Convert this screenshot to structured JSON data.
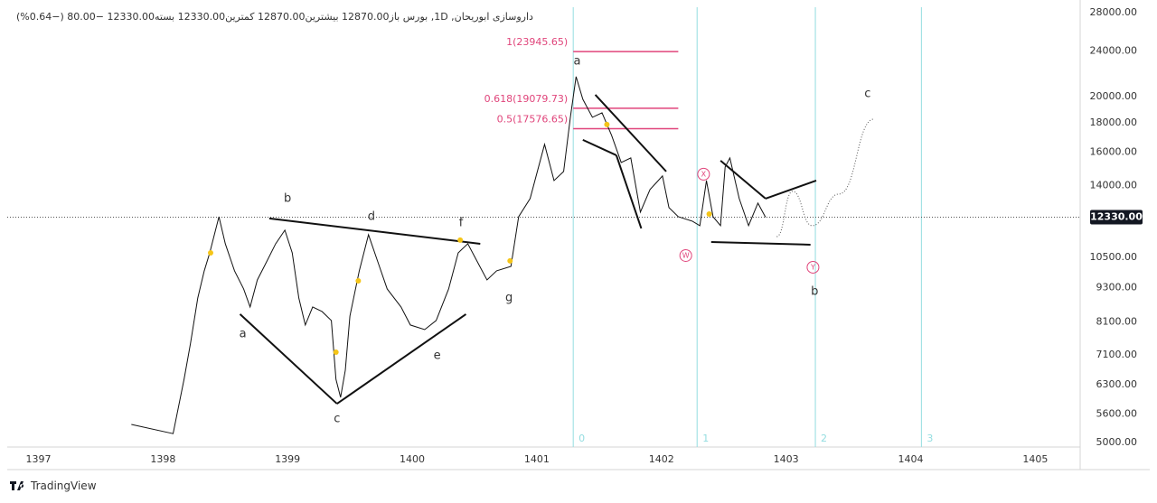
{
  "chart_data": {
    "type": "line",
    "header": "داروسازی ابوریحان, 1D, بورس  باز12870.00  بیشترین12870.00  کمترین12330.00  بسته12330.00  −80.00 (−0.64%)",
    "brand": "TradingView",
    "log_scale": true,
    "grid": false,
    "color": "#111111",
    "x": [
      1397.746,
      1398.081,
      1398.169,
      1398.221,
      1398.279,
      1398.331,
      1398.375,
      1398.449,
      1398.5,
      1398.574,
      1398.647,
      1398.699,
      1398.757,
      1398.831,
      1398.904,
      1398.978,
      1399.037,
      1399.09,
      1399.142,
      1399.201,
      1399.276,
      1399.351,
      1399.388,
      1399.425,
      1399.463,
      1399.5,
      1399.575,
      1399.649,
      1399.724,
      1399.799,
      1399.91,
      1399.985,
      1400.1,
      1400.192,
      1400.292,
      1400.369,
      1400.446,
      1400.523,
      1400.6,
      1400.677,
      1400.792,
      1400.854,
      1400.946,
      1401.062,
      1401.138,
      1401.215,
      1401.269,
      1401.315,
      1401.369,
      1401.446,
      1401.523,
      1401.6,
      1401.677,
      1401.754,
      1401.831,
      1401.908,
      1402.008,
      1402.06,
      1402.135,
      1402.248,
      1402.308,
      1402.361,
      1402.414,
      1402.474,
      1402.511,
      1402.549,
      1402.624,
      1402.699,
      1402.774,
      1402.835
    ],
    "values": [
      5375,
      5180,
      6440,
      7445,
      8920,
      9945,
      10690,
      12355,
      11085,
      9945,
      9250,
      8605,
      9590,
      10310,
      11085,
      11705,
      10690,
      8920,
      8005,
      8605,
      8450,
      8150,
      6440,
      5990,
      6680,
      8300,
      9945,
      11495,
      10310,
      9250,
      8605,
      8005,
      7860,
      8150,
      9250,
      10690,
      11085,
      10310,
      9590,
      9945,
      10125,
      12355,
      13285,
      16510,
      14280,
      14810,
      18400,
      21655,
      19780,
      18400,
      18735,
      17115,
      15355,
      15635,
      12585,
      13775,
      14545,
      12815,
      12355,
      12135,
      11920,
      14280,
      12355,
      11920,
      15080,
      15635,
      13285,
      11920,
      13045,
      12330
    ],
    "last_price": {
      "value": 12330,
      "label": "12330.00"
    },
    "xlim": [
      1396.75,
      1405.36
    ],
    "xticks": [
      1397,
      1398,
      1399,
      1400,
      1401,
      1402,
      1403,
      1404,
      1405
    ],
    "ylim": [
      4910,
      28600
    ],
    "yticks": [
      {
        "value": 28000,
        "label": "28000.00"
      },
      {
        "value": 24000,
        "label": "24000.00"
      },
      {
        "value": 20000,
        "label": "20000.00"
      },
      {
        "value": 18000,
        "label": "18000.00"
      },
      {
        "value": 16000,
        "label": "16000.00"
      },
      {
        "value": 14000,
        "label": "14000.00"
      },
      {
        "value": 10500,
        "label": "10500.00"
      },
      {
        "value": 9300,
        "label": "9300.00"
      },
      {
        "value": 8100,
        "label": "8100.00"
      },
      {
        "value": 7100,
        "label": "7100.00"
      },
      {
        "value": 6300,
        "label": "6300.00"
      },
      {
        "value": 5600,
        "label": "5600.00"
      },
      {
        "value": 5000,
        "label": "5000.00"
      }
    ],
    "fib_levels": [
      {
        "value": 23945.65,
        "label": "1(23945.65)"
      },
      {
        "value": 19079.73,
        "label": "0.618(19079.73)"
      },
      {
        "value": 17576.65,
        "label": "0.5(17576.65)"
      }
    ],
    "fib_x": [
      1401.292,
      1402.135
    ],
    "fib_color": "#e0457b",
    "cycle_lines": [
      {
        "x": 1401.292,
        "label": "0"
      },
      {
        "x": 1402.286,
        "label": "1"
      },
      {
        "x": 1403.235,
        "label": "2"
      },
      {
        "x": 1404.086,
        "label": "3"
      }
    ],
    "cycle_color": "#93dde0",
    "annotations": [
      {
        "text": "b",
        "x": 1399.0,
        "y": 13285
      },
      {
        "text": "d",
        "x": 1399.672,
        "y": 12355
      },
      {
        "text": "f",
        "x": 1400.392,
        "y": 12050
      },
      {
        "text": "a",
        "x": 1398.64,
        "y": 7720
      },
      {
        "text": "c",
        "x": 1399.396,
        "y": 5495
      },
      {
        "text": "e",
        "x": 1400.2,
        "y": 7075
      },
      {
        "text": "g",
        "x": 1400.777,
        "y": 8920
      },
      {
        "text": "a",
        "x": 1401.323,
        "y": 23030
      },
      {
        "text": "c",
        "x": 1403.654,
        "y": 20215
      },
      {
        "text": "b",
        "x": 1403.229,
        "y": 9150
      },
      {
        "text": "X",
        "x": 1402.338,
        "y": 14650,
        "circled": true
      },
      {
        "text": "W",
        "x": 1402.195,
        "y": 10575,
        "circled": true
      },
      {
        "text": "Y",
        "x": 1403.216,
        "y": 10090,
        "circled": true
      }
    ],
    "circle_color": "#e0457b",
    "trendlines": [
      {
        "x": [
          1398.853,
          1400.546
        ],
        "y": [
          12270,
          11085
        ]
      },
      {
        "x": [
          1398.618,
          1399.396
        ],
        "y": [
          8360,
          5840
        ]
      },
      {
        "x": [
          1399.396,
          1400.431
        ],
        "y": [
          5840,
          8360
        ]
      },
      {
        "x": [
          1401.469,
          1402.038
        ],
        "y": [
          20140,
          14810
        ]
      },
      {
        "x": [
          1401.369,
          1401.638
        ],
        "y": [
          16810,
          15805
        ]
      },
      {
        "x": [
          1401.638,
          1401.838
        ],
        "y": [
          15805,
          11790
        ]
      },
      {
        "x": [
          1402.474,
          1402.835
        ],
        "y": [
          15465,
          13285
        ]
      },
      {
        "x": [
          1402.835,
          1403.242
        ],
        "y": [
          13285,
          14280
        ]
      },
      {
        "x": [
          1402.399,
          1403.196
        ],
        "y": [
          11165,
          11045
        ]
      }
    ],
    "projection": {
      "x": [
        1402.925,
        1403.052,
        1403.209,
        1403.425,
        1403.706
      ],
      "y": [
        11410,
        13675,
        11920,
        13530,
        18270
      ]
    },
    "markers": {
      "color": "#f5c518",
      "x": [
        1398.382,
        1399.388,
        1399.567,
        1400.385,
        1400.785,
        1401.562,
        1402.383
      ],
      "y": [
        10690,
        7180,
        9555,
        11250,
        10350,
        17875,
        12490
      ]
    }
  }
}
